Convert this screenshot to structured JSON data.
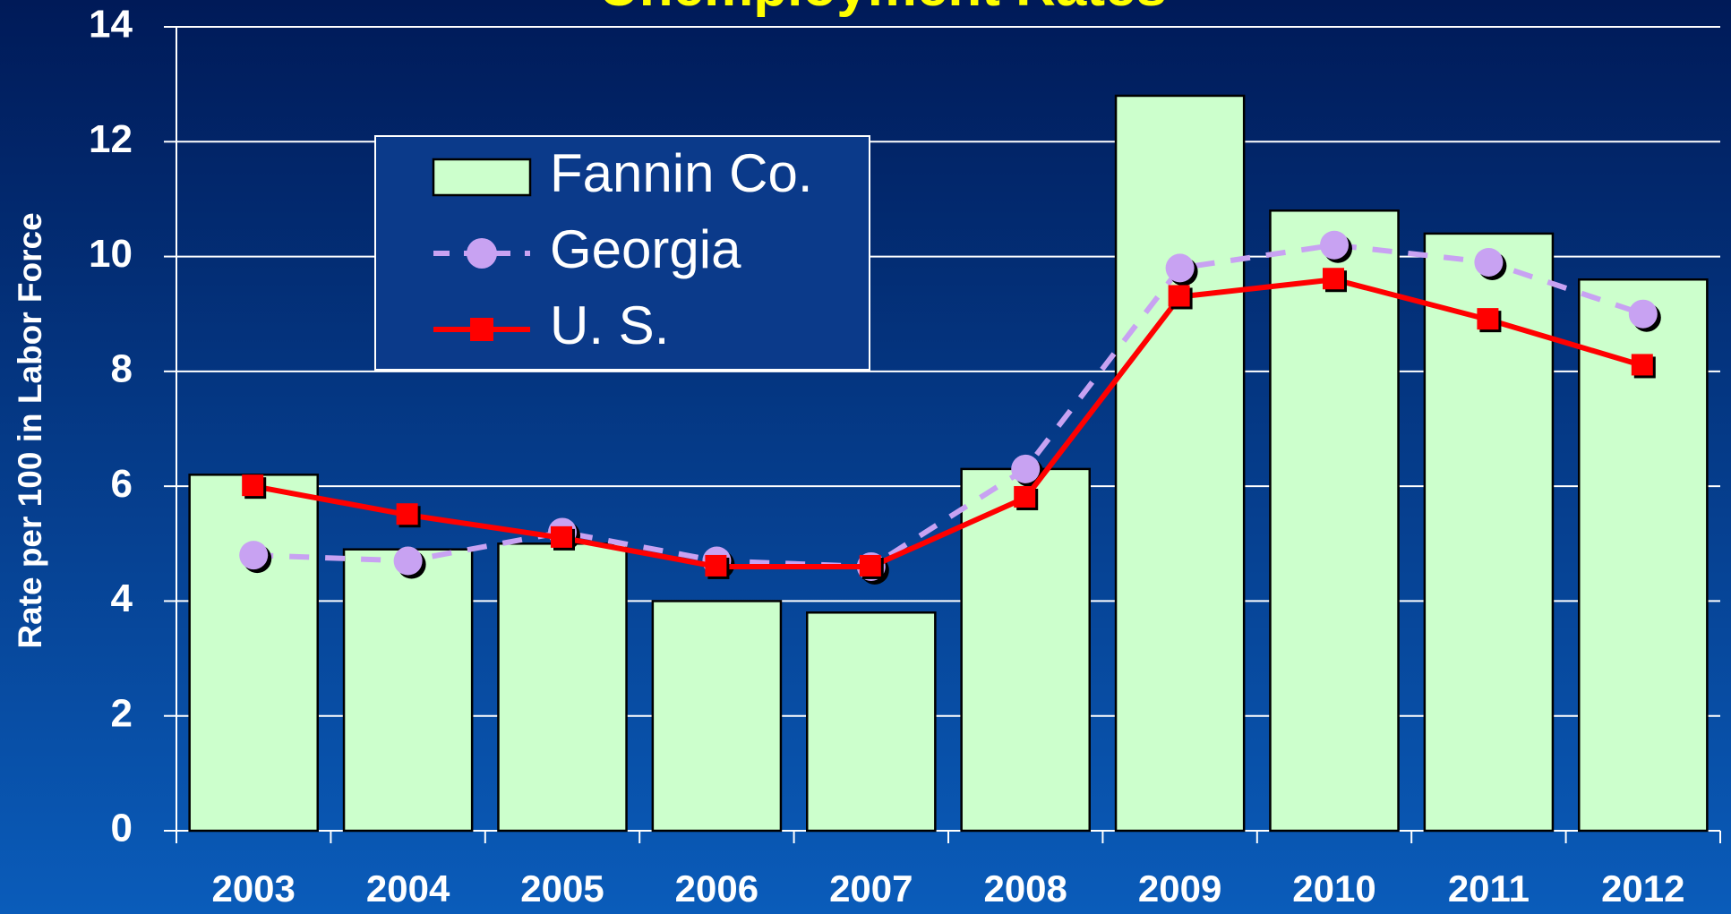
{
  "chart_data": {
    "type": "bar_line",
    "title": "Unemployment Rates",
    "y_label": "Rate per 100 in Labor Force",
    "categories": [
      "2003",
      "2004",
      "2005",
      "2006",
      "2007",
      "2008",
      "2009",
      "2010",
      "2011",
      "2012"
    ],
    "series": [
      {
        "name": "Fannin Co.",
        "type": "bar",
        "color": "#ccffcc",
        "values": [
          6.2,
          4.9,
          5.0,
          4.0,
          3.8,
          6.3,
          12.8,
          10.8,
          10.4,
          9.6
        ]
      },
      {
        "name": "Georgia",
        "type": "line",
        "color": "#c8a2f2",
        "dashed": true,
        "marker": "circle",
        "values": [
          4.8,
          4.7,
          5.2,
          4.7,
          4.6,
          6.3,
          9.8,
          10.2,
          9.9,
          9.0
        ]
      },
      {
        "name": "U. S.",
        "type": "line",
        "color": "#ff0000",
        "dashed": false,
        "marker": "square",
        "values": [
          6.0,
          5.5,
          5.1,
          4.6,
          4.6,
          5.8,
          9.3,
          9.6,
          8.9,
          8.1
        ]
      }
    ],
    "ylim": [
      0,
      14
    ],
    "yticks": [
      0,
      2,
      4,
      6,
      8,
      10,
      12,
      14
    ],
    "grid": true,
    "legend": "upper left"
  }
}
